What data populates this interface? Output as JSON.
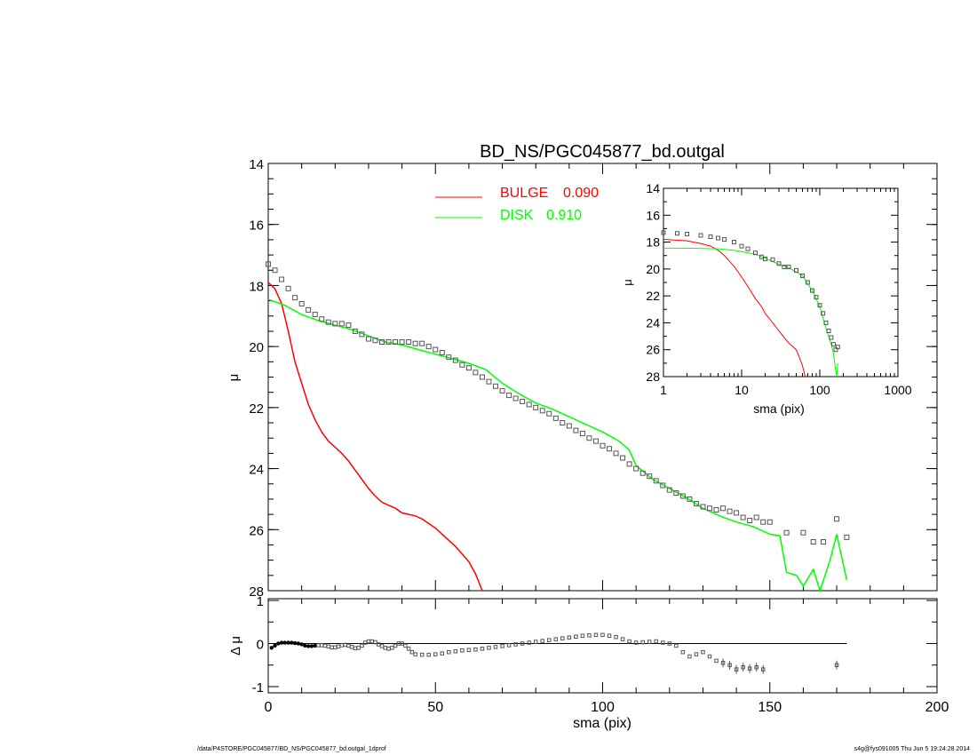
{
  "chart_data": [
    {
      "type": "scatter",
      "title": "BD_NS/PGC045877_bd.outgal",
      "xlabel": "",
      "ylabel": "μ",
      "xlim": [
        0,
        200
      ],
      "ylim": [
        28,
        14
      ],
      "yaxis_inverted": true,
      "x_ticks": [
        0,
        50,
        100,
        150,
        200
      ],
      "y_ticks": [
        "14",
        "16",
        "18",
        "20",
        "22",
        "24",
        "26",
        "28"
      ],
      "legend_placement": "top-center",
      "colors": {
        "bulge": "#ff0000",
        "disk": "#00ff00",
        "data": "#000000"
      },
      "series": [
        {
          "name": "",
          "kind": "observed profile (square markers)",
          "x": [
            0,
            2,
            4,
            6,
            8,
            10,
            12,
            14,
            16,
            18,
            20,
            22,
            24,
            26,
            28,
            30,
            32,
            34,
            36,
            38,
            40,
            42,
            44,
            46,
            48,
            50,
            52,
            54,
            56,
            58,
            60,
            62,
            64,
            66,
            68,
            70,
            72,
            74,
            76,
            78,
            80,
            82,
            84,
            86,
            88,
            90,
            92,
            94,
            96,
            98,
            100,
            102,
            104,
            106,
            108,
            110,
            112,
            114,
            116,
            118,
            120,
            122,
            124,
            126,
            128,
            130,
            132,
            134,
            136,
            138,
            140,
            142,
            144,
            146,
            148,
            150,
            155,
            160,
            163,
            166,
            170,
            173
          ],
          "y": [
            17.3,
            17.5,
            17.8,
            18.1,
            18.4,
            18.6,
            18.8,
            18.95,
            19.1,
            19.2,
            19.25,
            19.25,
            19.3,
            19.5,
            19.6,
            19.75,
            19.8,
            19.85,
            19.85,
            19.85,
            19.85,
            19.85,
            19.9,
            19.9,
            20.0,
            20.1,
            20.2,
            20.35,
            20.45,
            20.6,
            20.7,
            20.85,
            21.0,
            21.15,
            21.3,
            21.45,
            21.6,
            21.7,
            21.8,
            21.9,
            22.0,
            22.1,
            22.2,
            22.35,
            22.5,
            22.6,
            22.75,
            22.85,
            23.0,
            23.1,
            23.25,
            23.35,
            23.5,
            23.65,
            23.85,
            24.0,
            24.15,
            24.25,
            24.4,
            24.55,
            24.7,
            24.8,
            24.9,
            25.0,
            25.15,
            25.25,
            25.3,
            25.35,
            25.3,
            25.4,
            25.45,
            25.6,
            25.7,
            25.6,
            25.75,
            25.75,
            26.1,
            26.1,
            26.4,
            26.4,
            25.65,
            26.25
          ]
        },
        {
          "name": "BULGE",
          "value_label": "0.090",
          "kind": "line",
          "x": [
            0,
            2,
            4,
            6,
            8,
            10,
            12,
            14,
            16,
            18,
            20,
            22,
            24,
            26,
            28,
            30,
            32,
            34,
            36,
            38,
            40,
            42,
            44,
            46,
            48,
            50,
            52,
            54,
            56,
            58,
            60,
            62,
            64
          ],
          "y": [
            17.9,
            18.1,
            18.6,
            19.5,
            20.5,
            21.2,
            21.9,
            22.4,
            22.8,
            23.1,
            23.3,
            23.5,
            23.75,
            24.05,
            24.35,
            24.65,
            24.9,
            25.1,
            25.2,
            25.3,
            25.45,
            25.5,
            25.55,
            25.65,
            25.8,
            25.95,
            26.15,
            26.35,
            26.55,
            26.8,
            27.05,
            27.45,
            28.0
          ]
        },
        {
          "name": "DISK",
          "value_label": "0.910",
          "kind": "line",
          "x": [
            0,
            5,
            10,
            15,
            20,
            25,
            30,
            35,
            40,
            45,
            50,
            55,
            60,
            65,
            70,
            75,
            80,
            85,
            90,
            95,
            100,
            105,
            108,
            110,
            115,
            120,
            125,
            130,
            135,
            140,
            145,
            150,
            153,
            155,
            158,
            160,
            163,
            165,
            168,
            170,
            173
          ],
          "y": [
            18.45,
            18.65,
            18.95,
            19.15,
            19.3,
            19.45,
            19.65,
            19.85,
            19.95,
            20.1,
            20.25,
            20.4,
            20.55,
            20.75,
            21.2,
            21.55,
            21.85,
            22.05,
            22.3,
            22.55,
            22.8,
            23.1,
            23.4,
            23.9,
            24.35,
            24.65,
            24.95,
            25.3,
            25.55,
            25.75,
            25.9,
            26.15,
            26.2,
            27.4,
            27.5,
            27.85,
            27.3,
            28.1,
            27.0,
            26.15,
            27.65
          ]
        }
      ]
    },
    {
      "type": "line",
      "title": "",
      "xlabel": "sma (pix)",
      "ylabel": "μ",
      "xscale": "log",
      "xlim": [
        1,
        1000
      ],
      "ylim": [
        28,
        14
      ],
      "yaxis_inverted": true,
      "x_ticks": [
        "1",
        "10",
        "100",
        "1000"
      ],
      "y_ticks": [
        "14",
        "16",
        "18",
        "20",
        "22",
        "24",
        "26",
        "28"
      ],
      "series": [
        {
          "name": "",
          "kind": "observed profile (square markers)",
          "x": [
            1,
            1.5,
            2,
            3,
            4,
            5,
            6,
            8,
            10,
            12,
            15,
            18,
            20,
            25,
            30,
            35,
            40,
            50,
            60,
            70,
            80,
            90,
            100,
            110,
            120,
            130,
            140,
            150,
            160,
            170
          ],
          "y": [
            17.3,
            17.35,
            17.4,
            17.5,
            17.6,
            17.7,
            17.8,
            18.0,
            18.3,
            18.5,
            18.8,
            19.1,
            19.25,
            19.3,
            19.6,
            19.85,
            19.85,
            20.1,
            20.5,
            21.0,
            21.6,
            22.1,
            22.7,
            23.3,
            24.0,
            24.6,
            25.1,
            25.6,
            26.0,
            25.8
          ]
        },
        {
          "name": "BULGE",
          "kind": "line",
          "x": [
            1,
            2,
            3,
            4,
            5,
            6,
            8,
            10,
            12,
            15,
            18,
            20,
            25,
            30,
            35,
            40,
            50,
            55,
            60,
            65
          ],
          "y": [
            17.8,
            17.9,
            18.1,
            18.3,
            18.6,
            19.0,
            19.8,
            20.6,
            21.3,
            22.2,
            22.8,
            23.3,
            24.0,
            24.6,
            25.1,
            25.5,
            26.0,
            26.6,
            27.2,
            28.0
          ]
        },
        {
          "name": "DISK",
          "kind": "line",
          "x": [
            1,
            2,
            5,
            8,
            10,
            15,
            20,
            30,
            40,
            60,
            80,
            100,
            120,
            140,
            150,
            160,
            165,
            170
          ],
          "y": [
            18.45,
            18.45,
            18.5,
            18.6,
            18.7,
            18.9,
            19.2,
            19.65,
            19.9,
            20.5,
            21.6,
            22.8,
            24.4,
            25.6,
            26.3,
            27.6,
            28.0,
            27.0
          ]
        }
      ]
    },
    {
      "type": "scatter",
      "title": "",
      "xlabel": "sma (pix)",
      "ylabel": "Δ μ",
      "xlim": [
        0,
        200
      ],
      "ylim": [
        -1,
        1
      ],
      "x_ticks": [
        "0",
        "50",
        "100",
        "150",
        "200"
      ],
      "y_ticks": [
        "1",
        "0",
        "-1"
      ],
      "reference_line": 0,
      "series": [
        {
          "name": "",
          "kind": "residuals (square markers)",
          "x": [
            1,
            2,
            3,
            4,
            5,
            6,
            7,
            8,
            9,
            10,
            11,
            12,
            13,
            14,
            15,
            16,
            17,
            18,
            19,
            20,
            21,
            22,
            23,
            24,
            25,
            26,
            27,
            28,
            29,
            30,
            31,
            32,
            33,
            34,
            35,
            36,
            37,
            38,
            39,
            40,
            41,
            42,
            43,
            44,
            46,
            48,
            50,
            52,
            54,
            56,
            58,
            60,
            62,
            64,
            66,
            68,
            70,
            72,
            74,
            76,
            78,
            80,
            82,
            84,
            86,
            88,
            90,
            92,
            94,
            96,
            98,
            100,
            102,
            104,
            106,
            108,
            110,
            112,
            114,
            116,
            118,
            120,
            122,
            124,
            126,
            128,
            130,
            132,
            134,
            136,
            138,
            140,
            142,
            144,
            146,
            148,
            170
          ],
          "y": [
            -0.1,
            -0.05,
            0.0,
            0.02,
            0.02,
            0.02,
            0.02,
            0.01,
            0.0,
            -0.02,
            -0.05,
            -0.06,
            -0.06,
            -0.05,
            -0.04,
            -0.04,
            -0.05,
            -0.07,
            -0.09,
            -0.09,
            -0.07,
            -0.04,
            -0.03,
            -0.05,
            -0.08,
            -0.11,
            -0.1,
            -0.05,
            0.02,
            0.05,
            0.05,
            0.03,
            -0.02,
            -0.06,
            -0.1,
            -0.12,
            -0.1,
            -0.05,
            0.0,
            0.0,
            -0.05,
            -0.12,
            -0.2,
            -0.25,
            -0.26,
            -0.26,
            -0.25,
            -0.23,
            -0.2,
            -0.18,
            -0.16,
            -0.15,
            -0.14,
            -0.12,
            -0.1,
            -0.08,
            -0.06,
            -0.04,
            -0.02,
            0.0,
            0.02,
            0.04,
            0.06,
            0.08,
            0.1,
            0.12,
            0.14,
            0.16,
            0.18,
            0.19,
            0.2,
            0.2,
            0.18,
            0.15,
            0.1,
            0.05,
            0.02,
            0.03,
            0.04,
            0.05,
            0.02,
            0.0,
            -0.05,
            -0.2,
            -0.3,
            -0.25,
            -0.2,
            -0.3,
            -0.4,
            -0.45,
            -0.5,
            -0.6,
            -0.55,
            -0.58,
            -0.55,
            -0.6,
            -0.5
          ]
        }
      ]
    }
  ],
  "legend": [
    {
      "label": "BULGE",
      "value": "0.090",
      "color": "#ff0000"
    },
    {
      "label": "DISK",
      "value": "0.910",
      "color": "#00ff00"
    }
  ],
  "footer": {
    "left": "/data/P4STORE/PGC045877/BD_NS/PGC045877_bd.outgal_1dprof",
    "right": "s4g@fys091005  Thu Jun  5 19:24:28 2014"
  }
}
